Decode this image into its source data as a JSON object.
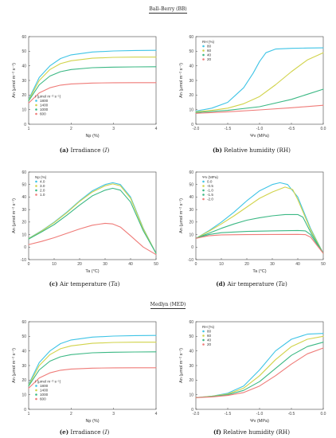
{
  "sections": {
    "bb": "Ball–Berry (BB)",
    "med": "Medlyn (MED)"
  },
  "colors": {
    "cyan": "#3fc4e6",
    "yellow": "#d1d34a",
    "green": "#3bb884",
    "red": "#ef7b78"
  },
  "chart_data": [
    {
      "id": "a",
      "type": "line",
      "caption_label": "(a)",
      "caption_text": "Irradiance (",
      "caption_var": "I",
      "caption_end": ")",
      "xlabel": "Np (%)",
      "ylabel": "An (µmol m⁻² s⁻¹)",
      "xlim": [
        1,
        4
      ],
      "ylim": [
        0,
        60
      ],
      "xticks": [
        "1",
        "2",
        "3",
        "4"
      ],
      "xtick_values": [
        1,
        2,
        3,
        4
      ],
      "yticks": [
        "0",
        "10",
        "20",
        "30",
        "40",
        "50",
        "60"
      ],
      "ytick_values": [
        0,
        10,
        20,
        30,
        40,
        50,
        60
      ],
      "legend_title": "I (µmol m⁻² s⁻¹)",
      "legend_position": "bottom-left",
      "series": [
        {
          "name": "1800",
          "color": "#3fc4e6",
          "x": [
            1,
            1.25,
            1.5,
            1.75,
            2,
            2.5,
            3,
            3.5,
            4
          ],
          "y": [
            17,
            32,
            40,
            45,
            47.5,
            49.5,
            50.2,
            50.5,
            50.6
          ]
        },
        {
          "name": "1400",
          "color": "#d1d34a",
          "x": [
            1,
            1.25,
            1.5,
            1.75,
            2,
            2.5,
            3,
            3.5,
            4
          ],
          "y": [
            16.5,
            30,
            37.5,
            41.5,
            43.5,
            45.2,
            45.8,
            46,
            46
          ]
        },
        {
          "name": "1000",
          "color": "#3bb884",
          "x": [
            1,
            1.25,
            1.5,
            1.75,
            2,
            2.5,
            3,
            3.5,
            4
          ],
          "y": [
            16,
            27,
            33,
            36,
            37.5,
            38.7,
            39.1,
            39.3,
            39.4
          ]
        },
        {
          "name": "600",
          "color": "#ef7b78",
          "x": [
            1,
            1.25,
            1.5,
            1.75,
            2,
            2.5,
            3,
            3.5,
            4
          ],
          "y": [
            14.5,
            21.5,
            25,
            26.8,
            27.6,
            28.2,
            28.4,
            28.5,
            28.5
          ]
        }
      ]
    },
    {
      "id": "b",
      "type": "line",
      "caption_label": "(b)",
      "caption_text": "Relative humidity (RH)",
      "caption_var": "",
      "caption_end": "",
      "xlabel": "Ψv (MPa)",
      "ylabel": "An (µmol m⁻² s⁻¹)",
      "xlim": [
        -2,
        0
      ],
      "ylim": [
        0,
        60
      ],
      "xticks": [
        "-2.0",
        "-1.5",
        "-1.0",
        "-0.5",
        "0.0"
      ],
      "xtick_values": [
        -2,
        -1.5,
        -1,
        -0.5,
        0
      ],
      "yticks": [
        "0",
        "10",
        "20",
        "30",
        "40",
        "50",
        "60"
      ],
      "ytick_values": [
        0,
        10,
        20,
        30,
        40,
        50,
        60
      ],
      "legend_title": "RH (%)",
      "legend_position": "top-left",
      "series": [
        {
          "name": "80",
          "color": "#3fc4e6",
          "x": [
            -2,
            -1.75,
            -1.5,
            -1.25,
            -1.1,
            -1,
            -0.9,
            -0.75,
            -0.5,
            -0.25,
            0
          ],
          "y": [
            9,
            11,
            15,
            25,
            35,
            43,
            49,
            51.5,
            52,
            52.2,
            52.3
          ]
        },
        {
          "name": "60",
          "color": "#d1d34a",
          "x": [
            -2,
            -1.75,
            -1.5,
            -1.25,
            -1,
            -0.75,
            -0.5,
            -0.25,
            0
          ],
          "y": [
            8.5,
            9.5,
            11,
            14,
            19,
            27,
            36,
            44,
            49
          ]
        },
        {
          "name": "40",
          "color": "#3bb884",
          "x": [
            -2,
            -1.5,
            -1,
            -0.5,
            0
          ],
          "y": [
            8,
            9.5,
            12,
            17,
            24
          ]
        },
        {
          "name": "20",
          "color": "#ef7b78",
          "x": [
            -2,
            -1.5,
            -1,
            -0.5,
            0
          ],
          "y": [
            7.5,
            8.5,
            9.8,
            11.3,
            13
          ]
        }
      ]
    },
    {
      "id": "c",
      "type": "line",
      "caption_label": "(c)",
      "caption_text": "Air temperature (",
      "caption_var": "Ta",
      "caption_end": ")",
      "xlabel": "Ta (°C)",
      "ylabel": "An (µmol m⁻² s⁻¹)",
      "xlim": [
        0,
        50
      ],
      "ylim": [
        -10,
        60
      ],
      "xticks": [
        "0",
        "10",
        "20",
        "30",
        "40",
        "50"
      ],
      "xtick_values": [
        0,
        10,
        20,
        30,
        40,
        50
      ],
      "yticks": [
        "-10",
        "0",
        "10",
        "20",
        "30",
        "40",
        "50",
        "60"
      ],
      "ytick_values": [
        -10,
        0,
        10,
        20,
        30,
        40,
        50,
        60
      ],
      "legend_title": "Np (%)",
      "legend_position": "top-left",
      "series": [
        {
          "name": "4.0",
          "color": "#3fc4e6",
          "x": [
            0,
            5,
            10,
            15,
            20,
            25,
            30,
            33,
            36,
            40,
            45,
            50
          ],
          "y": [
            7,
            13,
            20,
            28,
            37,
            45,
            50,
            51.5,
            50,
            40,
            15,
            -5
          ]
        },
        {
          "name": "3.0",
          "color": "#d1d34a",
          "x": [
            0,
            5,
            10,
            15,
            20,
            25,
            30,
            33,
            36,
            40,
            45,
            50
          ],
          "y": [
            6.8,
            12.7,
            19.5,
            27.5,
            36.5,
            44,
            49,
            50.5,
            49,
            39,
            14.5,
            -5
          ]
        },
        {
          "name": "2.0",
          "color": "#3bb884",
          "x": [
            0,
            5,
            10,
            15,
            20,
            25,
            30,
            33,
            36,
            40,
            45,
            50
          ],
          "y": [
            6.5,
            12,
            18,
            25.5,
            33.5,
            41,
            45.5,
            47,
            45.5,
            36,
            13,
            -5
          ]
        },
        {
          "name": "1.0",
          "color": "#ef7b78",
          "x": [
            0,
            5,
            10,
            15,
            20,
            25,
            30,
            33,
            36,
            40,
            45,
            50
          ],
          "y": [
            2,
            4.5,
            7.5,
            11,
            14.5,
            17.5,
            19,
            18.5,
            16,
            9,
            0,
            -6
          ]
        }
      ]
    },
    {
      "id": "d",
      "type": "line",
      "caption_label": "(d)",
      "caption_text": "Air temperature (",
      "caption_var": "Ta",
      "caption_end": ")",
      "xlabel": "Ta (°C)",
      "ylabel": "An (µmol m⁻² s⁻¹)",
      "xlim": [
        0,
        50
      ],
      "ylim": [
        -10,
        60
      ],
      "xticks": [
        "0",
        "10",
        "20",
        "30",
        "40",
        "50"
      ],
      "xtick_values": [
        0,
        10,
        20,
        30,
        40,
        50
      ],
      "yticks": [
        "-10",
        "0",
        "10",
        "20",
        "30",
        "40",
        "50",
        "60"
      ],
      "ytick_values": [
        -10,
        0,
        10,
        20,
        30,
        40,
        50,
        60
      ],
      "legend_title": "Ψv (MPa)",
      "legend_position": "top-left",
      "series": [
        {
          "name": "0.0",
          "color": "#3fc4e6",
          "x": [
            0,
            5,
            10,
            15,
            20,
            25,
            30,
            33,
            36,
            40,
            45,
            50
          ],
          "y": [
            7,
            13,
            20,
            28,
            37,
            45,
            50,
            51.5,
            50,
            40,
            15,
            -5
          ]
        },
        {
          "name": "-0.5",
          "color": "#d1d34a",
          "x": [
            0,
            5,
            10,
            15,
            20,
            25,
            30,
            35,
            38,
            40,
            45,
            50
          ],
          "y": [
            7,
            12.5,
            18.5,
            25,
            32,
            39,
            44,
            48,
            46,
            38,
            14,
            -5
          ]
        },
        {
          "name": "-1.0",
          "color": "#3bb884",
          "x": [
            0,
            5,
            10,
            15,
            20,
            25,
            30,
            35,
            40,
            42,
            45,
            50
          ],
          "y": [
            7,
            11,
            15,
            18.5,
            21.5,
            23.5,
            25,
            26,
            26,
            24,
            12,
            -5
          ]
        },
        {
          "name": "-1.5",
          "color": "#3bb884",
          "x": [
            0,
            5,
            10,
            20,
            30,
            40,
            43,
            45,
            50
          ],
          "y": [
            7,
            10,
            11.5,
            12.5,
            13,
            13.3,
            13,
            10,
            -5
          ]
        },
        {
          "name": "-2.0",
          "color": "#ef7b78",
          "x": [
            0,
            5,
            10,
            20,
            30,
            40,
            43,
            45,
            50
          ],
          "y": [
            7,
            9,
            9.8,
            10,
            10.1,
            10.2,
            10,
            8,
            -5
          ]
        }
      ]
    },
    {
      "id": "e",
      "type": "line",
      "caption_label": "(e)",
      "caption_text": "Irradiance (",
      "caption_var": "I",
      "caption_end": ")",
      "xlabel": "Np (%)",
      "ylabel": "An (µmol m⁻² s⁻¹)",
      "xlim": [
        1,
        4
      ],
      "ylim": [
        0,
        60
      ],
      "xticks": [
        "1",
        "2",
        "3",
        "4"
      ],
      "xtick_values": [
        1,
        2,
        3,
        4
      ],
      "yticks": [
        "0",
        "10",
        "20",
        "30",
        "40",
        "50",
        "60"
      ],
      "ytick_values": [
        0,
        10,
        20,
        30,
        40,
        50,
        60
      ],
      "legend_title": "I (µmol m⁻² s⁻¹)",
      "legend_position": "bottom-left",
      "series": [
        {
          "name": "1800",
          "color": "#3fc4e6",
          "x": [
            1,
            1.25,
            1.5,
            1.75,
            2,
            2.5,
            3,
            3.5,
            4
          ],
          "y": [
            17,
            32,
            40,
            45,
            47.5,
            49.5,
            50.2,
            50.5,
            50.6
          ]
        },
        {
          "name": "1400",
          "color": "#d1d34a",
          "x": [
            1,
            1.25,
            1.5,
            1.75,
            2,
            2.5,
            3,
            3.5,
            4
          ],
          "y": [
            16.5,
            30,
            37.5,
            41.5,
            43.5,
            45.2,
            45.8,
            46,
            46
          ]
        },
        {
          "name": "1000",
          "color": "#3bb884",
          "x": [
            1,
            1.25,
            1.5,
            1.75,
            2,
            2.5,
            3,
            3.5,
            4
          ],
          "y": [
            16,
            27,
            33,
            36,
            37.5,
            38.7,
            39.1,
            39.3,
            39.4
          ]
        },
        {
          "name": "600",
          "color": "#ef7b78",
          "x": [
            1,
            1.25,
            1.5,
            1.75,
            2,
            2.5,
            3,
            3.5,
            4
          ],
          "y": [
            14.5,
            21.5,
            25,
            26.8,
            27.6,
            28.2,
            28.4,
            28.5,
            28.5
          ]
        }
      ]
    },
    {
      "id": "f",
      "type": "line",
      "caption_label": "(f)",
      "caption_text": "Relative humidity (RH)",
      "caption_var": "",
      "caption_end": "",
      "xlabel": "Ψv (MPa)",
      "ylabel": "An (µmol m⁻² s⁻¹)",
      "xlim": [
        -2,
        0
      ],
      "ylim": [
        0,
        60
      ],
      "xticks": [
        "-2.0",
        "-1.5",
        "-1.0",
        "-0.5",
        "0.0"
      ],
      "xtick_values": [
        -2,
        -1.5,
        -1,
        -0.5,
        0
      ],
      "yticks": [
        "0",
        "10",
        "20",
        "30",
        "40",
        "50",
        "60"
      ],
      "ytick_values": [
        0,
        10,
        20,
        30,
        40,
        50,
        60
      ],
      "legend_title": "RH (%)",
      "legend_position": "top-left",
      "series": [
        {
          "name": "80",
          "color": "#3fc4e6",
          "x": [
            -2,
            -1.75,
            -1.5,
            -1.25,
            -1,
            -0.75,
            -0.5,
            -0.25,
            0
          ],
          "y": [
            8,
            9,
            11,
            16,
            27,
            40,
            48,
            51.5,
            52
          ]
        },
        {
          "name": "60",
          "color": "#d1d34a",
          "x": [
            -2,
            -1.75,
            -1.5,
            -1.25,
            -1,
            -0.75,
            -0.5,
            -0.25,
            0
          ],
          "y": [
            8,
            9,
            10.5,
            14.5,
            23,
            34,
            43,
            48,
            50
          ]
        },
        {
          "name": "40",
          "color": "#3bb884",
          "x": [
            -2,
            -1.75,
            -1.5,
            -1.25,
            -1,
            -0.75,
            -0.5,
            -0.25,
            0
          ],
          "y": [
            8,
            8.8,
            10,
            13,
            19,
            28,
            37,
            43,
            46
          ]
        },
        {
          "name": "20",
          "color": "#ef7b78",
          "x": [
            -2,
            -1.75,
            -1.5,
            -1.25,
            -1,
            -0.75,
            -0.5,
            -0.25,
            0
          ],
          "y": [
            8,
            8.5,
            9.5,
            11.5,
            16,
            23,
            31,
            38,
            42
          ]
        }
      ]
    }
  ]
}
